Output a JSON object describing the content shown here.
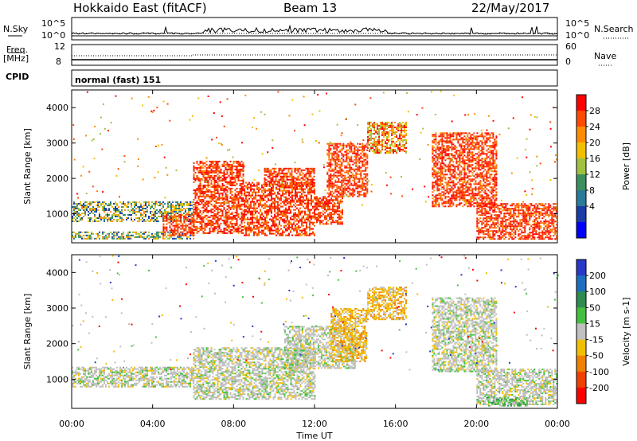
{
  "header": {
    "station": "Hokkaido East (fitACF)",
    "beam": "Beam 13",
    "date": "22/May/2017"
  },
  "panels": {
    "nsky": {
      "label": "N.Sky",
      "ticks": [
        "10^5",
        "10^0"
      ],
      "right_ticks": [
        "10^5",
        "10^0"
      ],
      "right_label": "N.Search"
    },
    "freq": {
      "label": "Freq.",
      "unit": "[MHz]",
      "ticks": [
        "12",
        "8"
      ],
      "right_ticks": [
        "60",
        "0"
      ],
      "right_label": "Nave"
    },
    "cpid": {
      "label": "CPID",
      "text": "normal (fast) 151"
    }
  },
  "chart_data": [
    {
      "type": "heatmap",
      "name": "power",
      "ylabel": "Slant Range [km]",
      "yticks": [
        1000,
        2000,
        3000,
        4000
      ],
      "ylim": [
        180,
        4500
      ],
      "xlim": [
        0,
        24
      ],
      "colorbar": {
        "label": "Power [dB]",
        "ticks": [
          "28",
          "24",
          "20",
          "16",
          "12",
          "8",
          "4"
        ],
        "colors": [
          "#ff0000",
          "#ff4a00",
          "#ff8c00",
          "#f0c000",
          "#a0c040",
          "#3c9060",
          "#2a7a9a",
          "#1a3ca8",
          "#0000ff"
        ]
      },
      "regions": [
        {
          "t0": 0.0,
          "t1": 6.0,
          "r0": 800,
          "r1": 1350,
          "level": "low"
        },
        {
          "t0": 0.0,
          "t1": 6.0,
          "r0": 280,
          "r1": 500,
          "level": "low"
        },
        {
          "t0": 4.5,
          "t1": 6.0,
          "r0": 400,
          "r1": 1000,
          "level": "high"
        },
        {
          "t0": 6.0,
          "t1": 8.5,
          "r0": 450,
          "r1": 2500,
          "level": "high"
        },
        {
          "t0": 8.5,
          "t1": 12.0,
          "r0": 400,
          "r1": 1900,
          "level": "high"
        },
        {
          "t0": 9.5,
          "t1": 12.0,
          "r0": 1800,
          "r1": 2300,
          "level": "high"
        },
        {
          "t0": 12.0,
          "t1": 13.4,
          "r0": 700,
          "r1": 1500,
          "level": "high"
        },
        {
          "t0": 12.6,
          "t1": 14.6,
          "r0": 1500,
          "r1": 3000,
          "level": "high"
        },
        {
          "t0": 14.6,
          "t1": 16.5,
          "r0": 2700,
          "r1": 3600,
          "level": "mid"
        },
        {
          "t0": 17.8,
          "t1": 21.0,
          "r0": 1200,
          "r1": 3300,
          "level": "high"
        },
        {
          "t0": 20.0,
          "t1": 24.0,
          "r0": 300,
          "r1": 1300,
          "level": "high"
        }
      ]
    },
    {
      "type": "heatmap",
      "name": "velocity",
      "ylabel": "Slant Range [km]",
      "yticks": [
        1000,
        2000,
        3000,
        4000
      ],
      "ylim": [
        180,
        4500
      ],
      "xlim": [
        0,
        24
      ],
      "xticks": [
        "00:00",
        "04:00",
        "08:00",
        "12:00",
        "16:00",
        "20:00",
        "00:00"
      ],
      "xlabel": "Time UT",
      "colorbar": {
        "label": "Velocity [m s-1]",
        "ticks": [
          "200",
          "100",
          "50",
          "15",
          "-15",
          "-50",
          "-100",
          "-200"
        ],
        "colors": [
          "#2838c8",
          "#1e6ec0",
          "#2e8c50",
          "#44c040",
          "#c0c0c0",
          "#f0c000",
          "#f08000",
          "#f04000",
          "#ff0000"
        ]
      },
      "regions": [
        {
          "t0": 0.0,
          "t1": 6.0,
          "r0": 800,
          "r1": 1350,
          "level": "zero"
        },
        {
          "t0": 6.0,
          "t1": 12.0,
          "r0": 450,
          "r1": 1900,
          "level": "zero"
        },
        {
          "t0": 10.5,
          "t1": 14.0,
          "r0": 1300,
          "r1": 2500,
          "level": "zero"
        },
        {
          "t0": 12.8,
          "t1": 14.6,
          "r0": 1500,
          "r1": 3000,
          "level": "neg"
        },
        {
          "t0": 14.6,
          "t1": 16.5,
          "r0": 2700,
          "r1": 3600,
          "level": "neg"
        },
        {
          "t0": 17.8,
          "t1": 21.0,
          "r0": 1200,
          "r1": 3300,
          "level": "zero"
        },
        {
          "t0": 20.0,
          "t1": 24.0,
          "r0": 300,
          "r1": 1300,
          "level": "zero"
        },
        {
          "t0": 20.5,
          "t1": 22.5,
          "r0": 250,
          "r1": 500,
          "level": "pos"
        }
      ]
    }
  ]
}
